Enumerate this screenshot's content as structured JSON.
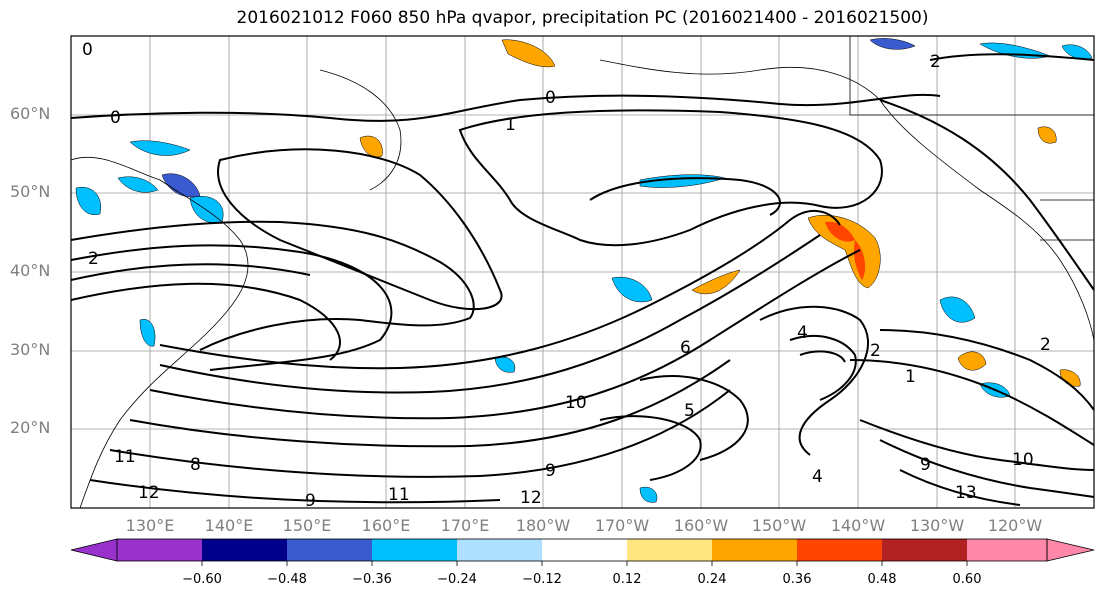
{
  "title": "2016021012 F060 850 hPa qvapor, precipitation PC (2016021400 - 2016021500)",
  "lat_labels": [
    "60°N",
    "50°N",
    "40°N",
    "30°N",
    "20°N"
  ],
  "lon_labels": [
    "130°E",
    "140°E",
    "150°E",
    "160°E",
    "170°E",
    "180°W",
    "170°W",
    "160°W",
    "150°W",
    "140°W",
    "130°W",
    "120°W"
  ],
  "colorbar": {
    "ticks": [
      "−0.60",
      "−0.48",
      "−0.36",
      "−0.24",
      "−0.12",
      "0.12",
      "0.24",
      "0.36",
      "0.48",
      "0.60"
    ],
    "colors": [
      "#9932cc",
      "#00008b",
      "#3a5bd0",
      "#00bfff",
      "#b0e0ff",
      "#ffffff",
      "#ffe680",
      "#ffa500",
      "#ff4500",
      "#b22222",
      "#ff88aa"
    ]
  },
  "contour_labels": [
    "0",
    "0",
    "0",
    "1",
    "2",
    "2",
    "2",
    "4",
    "5",
    "6",
    "8",
    "9",
    "9",
    "10",
    "10",
    "11",
    "11",
    "12",
    "12",
    "13",
    "1",
    "2",
    "4",
    "9"
  ],
  "legend_colors": {
    "land_outline": "#000000",
    "grid": "#808080"
  }
}
